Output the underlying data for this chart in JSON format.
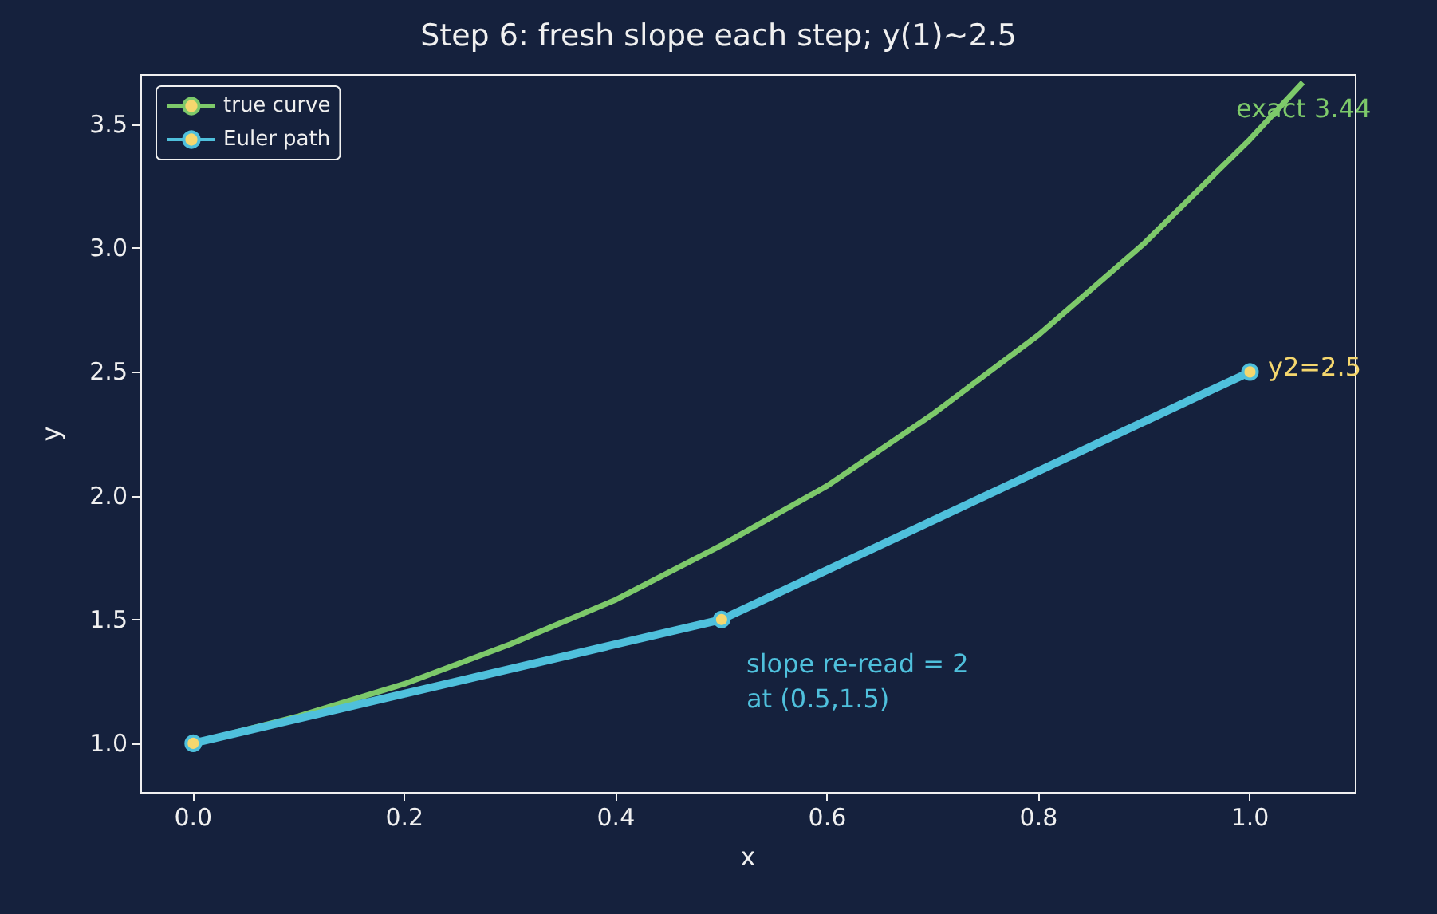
{
  "chart_data": {
    "type": "line",
    "title": "Step 6: fresh slope each step; y(1)~2.5",
    "xlabel": "x",
    "ylabel": "y",
    "series": [
      {
        "name": "true curve",
        "color": "#7dc96a",
        "marker": "none",
        "x": [
          0,
          0.1,
          0.2,
          0.3,
          0.4,
          0.5,
          0.6,
          0.7,
          0.8,
          0.9,
          1.0,
          1.05
        ],
        "values": [
          1.0,
          1.11,
          1.24,
          1.4,
          1.58,
          1.8,
          2.04,
          2.33,
          2.65,
          3.02,
          3.44,
          3.67
        ]
      },
      {
        "name": "Euler path",
        "color": "#4fc0dc",
        "marker": "circle",
        "x": [
          0,
          0.5,
          1.0
        ],
        "values": [
          1.0,
          1.5,
          2.5
        ]
      }
    ],
    "annotations": [
      "exact 3.44",
      "y2=2.5",
      "slope re-read = 2\nat (0.5,1.5)"
    ],
    "xlim": [
      -0.05,
      1.1
    ],
    "xticks": [
      {
        "value": 0,
        "label": "0.0"
      },
      {
        "value": 0.2,
        "label": "0.2"
      },
      {
        "value": 0.4,
        "label": "0.4"
      },
      {
        "value": 0.6,
        "label": "0.6"
      },
      {
        "value": 0.8,
        "label": "0.8"
      },
      {
        "value": 1.0,
        "label": "1.0"
      }
    ],
    "ylim": [
      0.8,
      3.7
    ],
    "yticks": [
      {
        "value": 1.0,
        "label": "1.0"
      },
      {
        "value": 1.5,
        "label": "1.5"
      },
      {
        "value": 2.0,
        "label": "2.0"
      },
      {
        "value": 2.5,
        "label": "2.5"
      },
      {
        "value": 3.0,
        "label": "3.0"
      },
      {
        "value": 3.5,
        "label": "3.5"
      }
    ],
    "grid": false,
    "legend": "top left"
  }
}
